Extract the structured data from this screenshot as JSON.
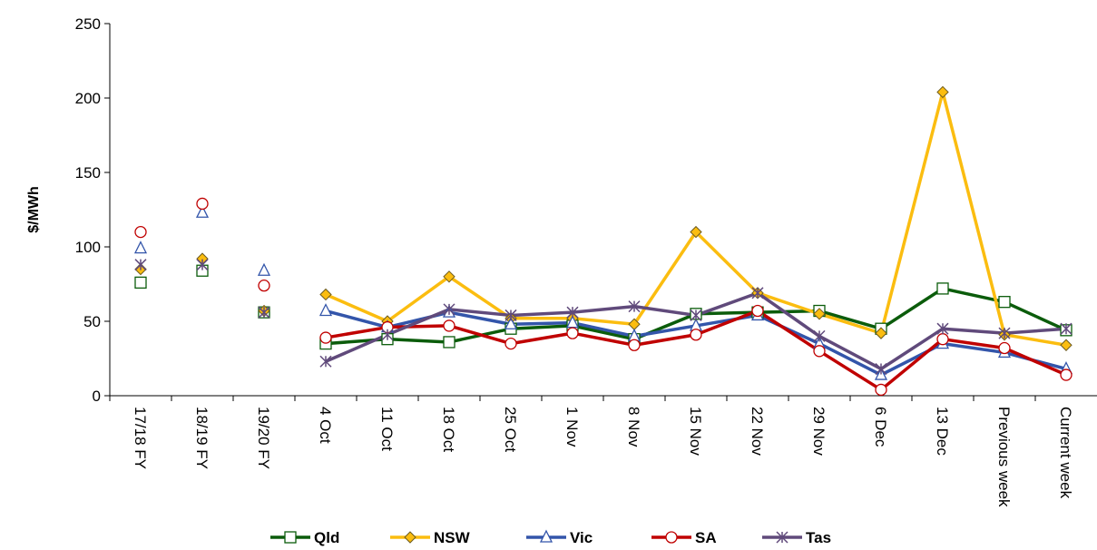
{
  "chart_data": {
    "type": "line",
    "y_label": "$/MWh",
    "categories": [
      "17/18 FY",
      "18/19 FY",
      "19/20 FY",
      "4 Oct",
      "11 Oct",
      "18 Oct",
      "25 Oct",
      "1 Nov",
      "8 Nov",
      "15 Nov",
      "22 Nov",
      "29 Nov",
      "6 Dec",
      "13 Dec",
      "Previous week",
      "Current week"
    ],
    "line_from": 3,
    "ylim": [
      0,
      250
    ],
    "yticks": [
      0,
      50,
      100,
      150,
      200,
      250
    ],
    "grid": false,
    "legend": "bottom",
    "series": [
      {
        "name": "Qld",
        "color": "#0b5c0b",
        "marker": "square",
        "values": [
          76,
          84,
          56,
          35,
          38,
          36,
          45,
          47,
          38,
          55,
          56,
          57,
          45,
          72,
          63,
          44
        ]
      },
      {
        "name": "NSW",
        "color": "#fbbd10",
        "marker": "diamond",
        "values": [
          85,
          92,
          57,
          68,
          50,
          80,
          52,
          52,
          48,
          110,
          69,
          55,
          42,
          204,
          41,
          34
        ]
      },
      {
        "name": "Vic",
        "color": "#3355aa",
        "marker": "triangle",
        "values": [
          99,
          123,
          84,
          57,
          46,
          56,
          48,
          49,
          40,
          47,
          54,
          35,
          14,
          35,
          29,
          18
        ]
      },
      {
        "name": "SA",
        "color": "#c00000",
        "marker": "circle",
        "values": [
          110,
          129,
          74,
          39,
          46,
          47,
          35,
          42,
          34,
          41,
          57,
          30,
          4,
          38,
          32,
          14
        ]
      },
      {
        "name": "Tas",
        "color": "#604a7b",
        "marker": "star",
        "values": [
          88,
          88,
          56,
          23,
          41,
          58,
          54,
          56,
          60,
          54,
          69,
          40,
          18,
          45,
          42,
          45
        ]
      }
    ]
  }
}
